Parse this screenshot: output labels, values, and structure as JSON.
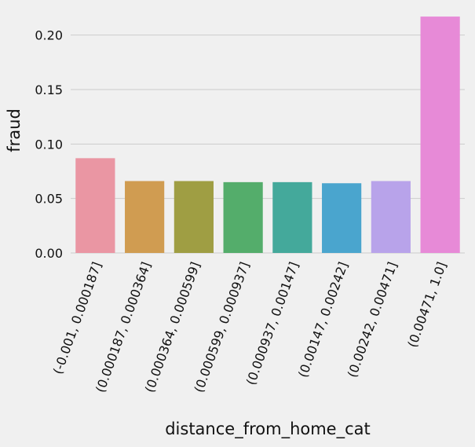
{
  "chart_data": {
    "type": "bar",
    "title": "",
    "xlabel": "distance_from_home_cat",
    "ylabel": "fraud",
    "categories": [
      "(-0.001, 0.000187]",
      "(0.000187, 0.000364]",
      "(0.000364, 0.000599]",
      "(0.000599, 0.000937]",
      "(0.000937, 0.00147]",
      "(0.00147, 0.00242]",
      "(0.00242, 0.00471]",
      "(0.00471, 1.0]"
    ],
    "values": [
      0.087,
      0.066,
      0.066,
      0.065,
      0.065,
      0.064,
      0.066,
      0.217
    ],
    "colors": [
      "#ea96a3",
      "#d09c51",
      "#9f9e43",
      "#54ad6b",
      "#44a99b",
      "#4aa5ce",
      "#b8a3ea",
      "#e78ad7"
    ],
    "ylim": [
      0,
      0.225
    ],
    "yticks": [
      0.0,
      0.05,
      0.1,
      0.15,
      0.2
    ],
    "ytick_labels": [
      "0.00",
      "0.05",
      "0.10",
      "0.15",
      "0.20"
    ],
    "grid": "horizontal",
    "background": "#f0f0f0",
    "grid_color": "#cbcbcb"
  }
}
